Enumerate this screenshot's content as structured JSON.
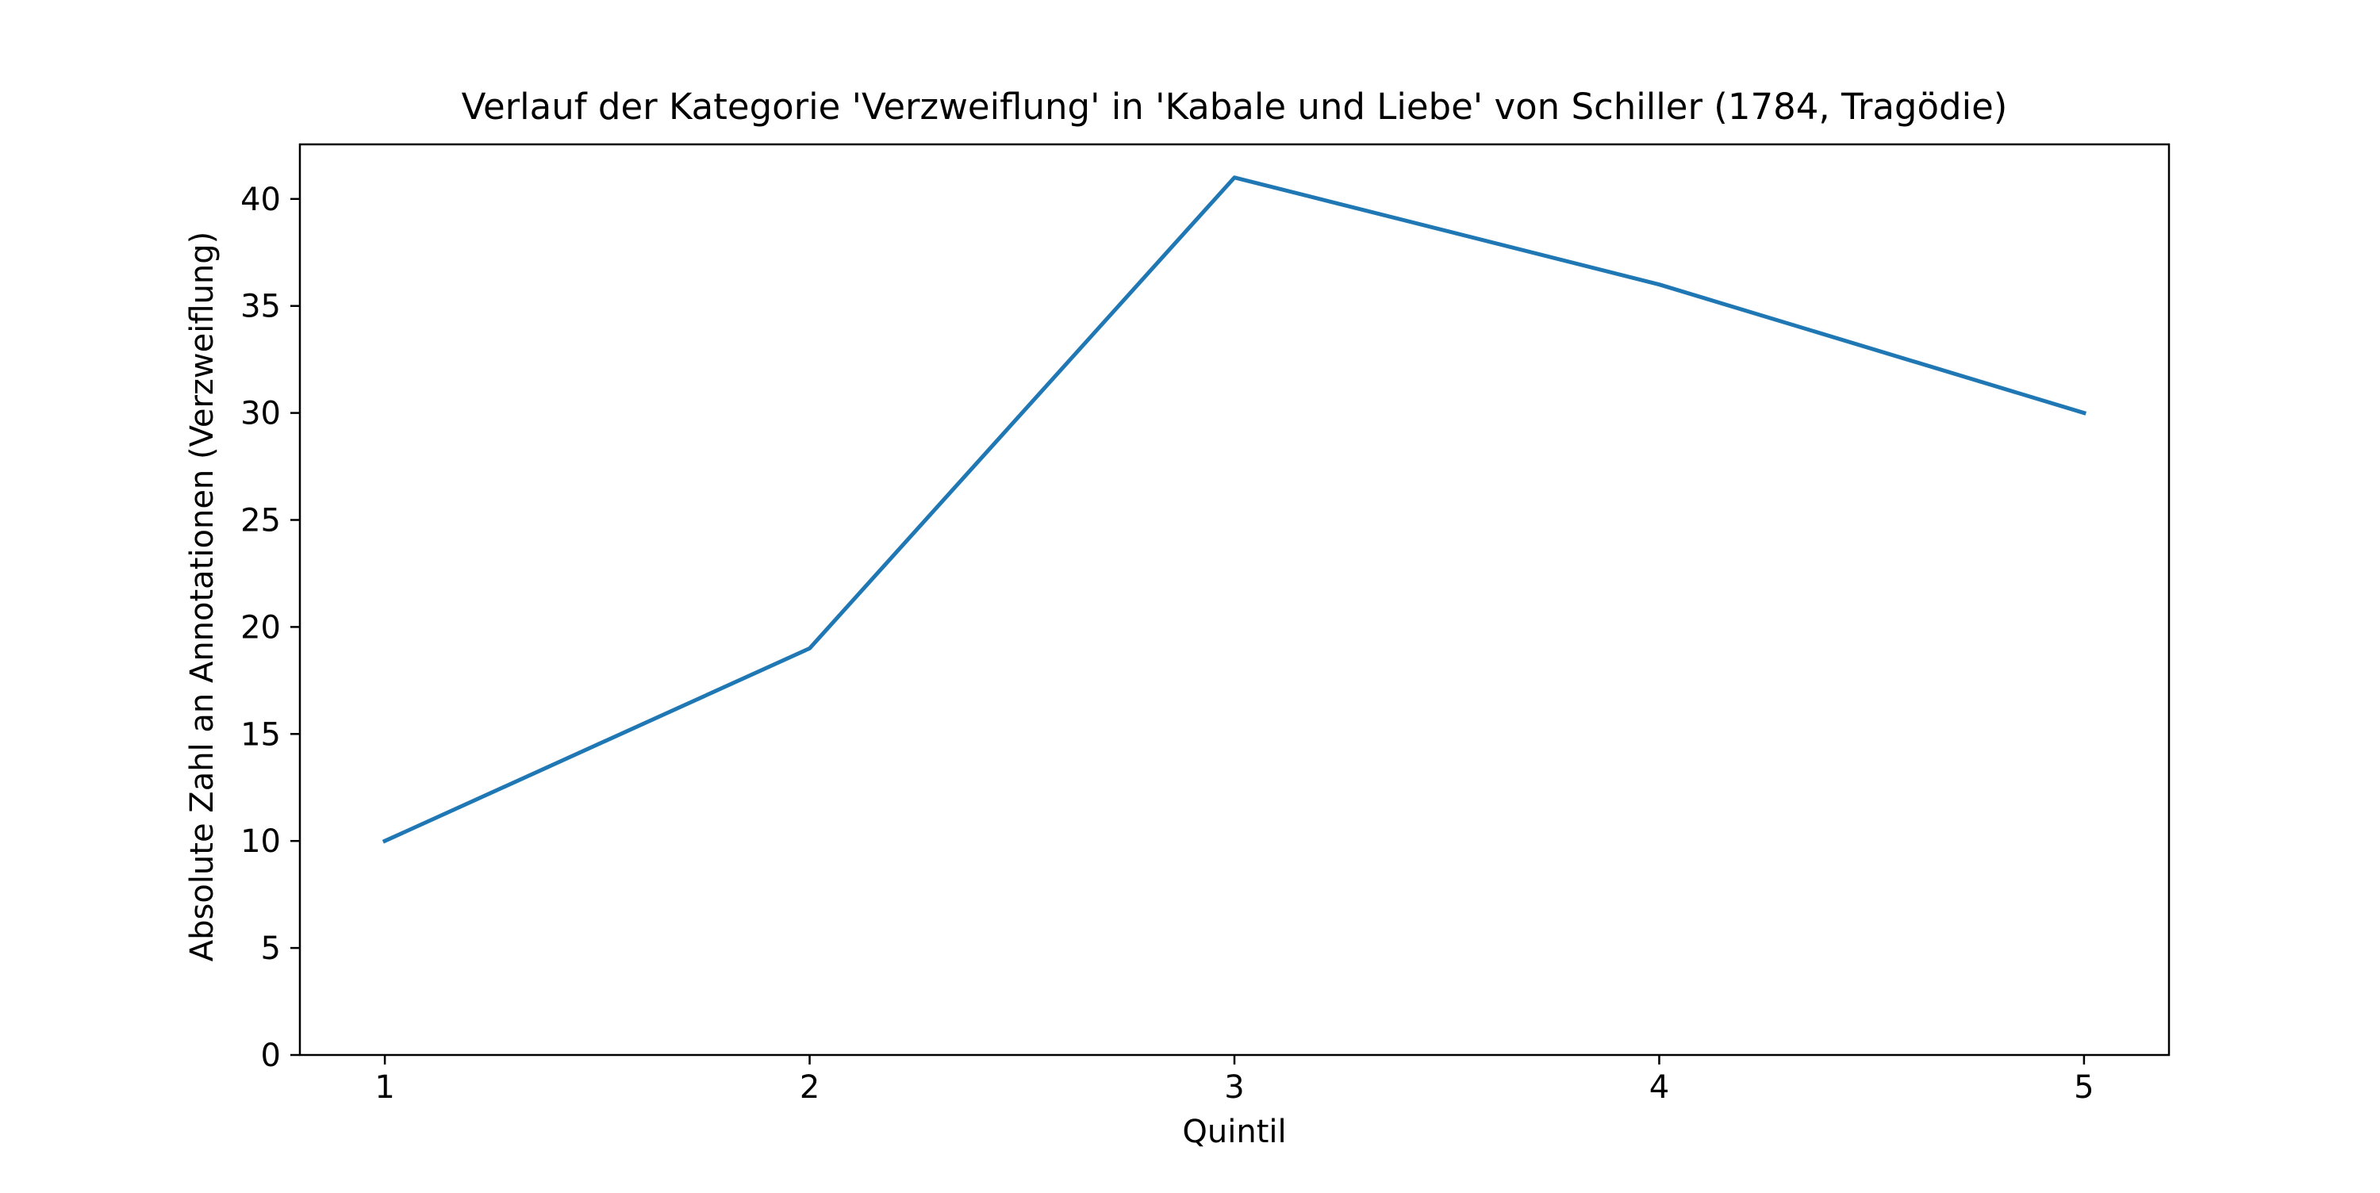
{
  "chart_data": {
    "type": "line",
    "title": "Verlauf der Kategorie 'Verzweiflung' in 'Kabale und Liebe' von Schiller (1784, Tragödie)",
    "xlabel": "Quintil",
    "ylabel": "Absolute Zahl an Annotationen (Verzweiflung)",
    "x": [
      1,
      2,
      3,
      4,
      5
    ],
    "series": [
      {
        "values": [
          10,
          19,
          41,
          36,
          30
        ],
        "color": "#1f77b4"
      }
    ],
    "xlim": [
      0.8,
      5.2
    ],
    "ylim": [
      0,
      42.55
    ],
    "xticks": [
      1,
      2,
      3,
      4,
      5
    ],
    "yticks": [
      0,
      5,
      10,
      15,
      20,
      25,
      30,
      35,
      40
    ],
    "grid": false,
    "legend": "none"
  }
}
